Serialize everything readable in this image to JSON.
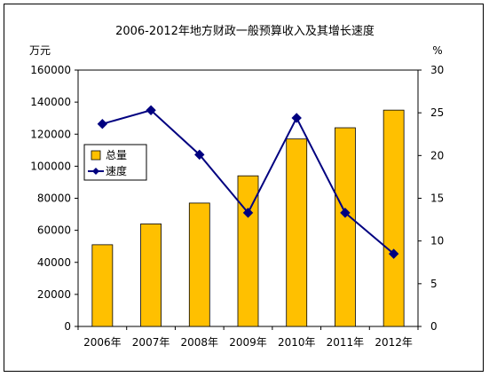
{
  "chart_data": {
    "type": "bar",
    "title": "2006-2012年地方财政一般预算收入及其增长速度",
    "categories": [
      "2006年",
      "2007年",
      "2008年",
      "2009年",
      "2010年",
      "2011年",
      "2012年"
    ],
    "y_left_unit": "万元",
    "y_right_unit": "%",
    "y_left_ticks": [
      "0",
      "20000",
      "40000",
      "60000",
      "80000",
      "100000",
      "120000",
      "140000",
      "160000"
    ],
    "y_right_ticks": [
      "0",
      "5",
      "10",
      "15",
      "20",
      "25",
      "30"
    ],
    "ylim_left": [
      0,
      160000
    ],
    "ylim_right": [
      0,
      30
    ],
    "series": [
      {
        "name": "总量",
        "type": "bar",
        "axis": "left",
        "color": "#FFC000",
        "values": [
          51000,
          64000,
          77000,
          94000,
          117000,
          124000,
          135000
        ]
      },
      {
        "name": "速度",
        "type": "line",
        "axis": "right",
        "color": "#000080",
        "marker": "diamond",
        "values": [
          23.7,
          25.3,
          20.1,
          13.3,
          24.4,
          13.3,
          8.5
        ]
      }
    ],
    "legend_placement": "left, inside plot",
    "grid": false
  }
}
